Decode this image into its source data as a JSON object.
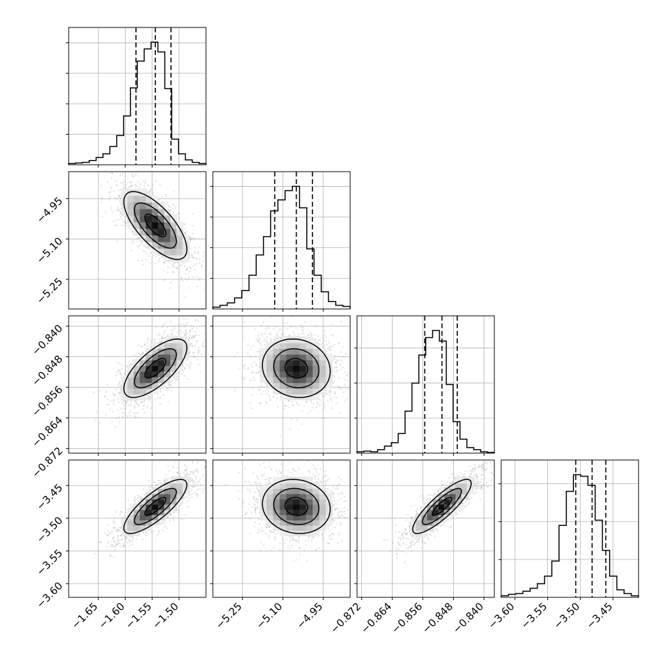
{
  "chart_data": {
    "type": "corner",
    "parameters": [
      {
        "key": "p0",
        "range": [
          -1.705,
          -1.45
        ],
        "ticks": [
          -1.65,
          -1.6,
          -1.55,
          -1.5
        ],
        "tick_labels": [
          "−1.65",
          "−1.60",
          "−1.55",
          "−1.50"
        ],
        "quantiles": [
          -1.58,
          -1.544,
          -1.515
        ]
      },
      {
        "key": "p1",
        "range": [
          -5.36,
          -4.85
        ],
        "ticks": [
          -5.25,
          -5.1,
          -4.95
        ],
        "tick_labels": [
          "−5.25",
          "−5.10",
          "−4.95"
        ],
        "quantiles": [
          -5.13,
          -5.05,
          -4.99
        ]
      },
      {
        "key": "p2",
        "range": [
          -0.8732,
          -0.8373
        ],
        "ticks": [
          -0.872,
          -0.864,
          -0.856,
          -0.848,
          -0.84
        ],
        "tick_labels": [
          "−0.872",
          "−0.864",
          "−0.856",
          "−0.848",
          "−0.840"
        ],
        "quantiles": [
          -0.8555,
          -0.851,
          -0.847
        ]
      },
      {
        "key": "p3",
        "range": [
          -3.621,
          -3.411
        ],
        "ticks": [
          -3.6,
          -3.55,
          -3.5,
          -3.45
        ],
        "tick_labels": [
          "−3.60",
          "−3.55",
          "−3.50",
          "−3.45"
        ],
        "quantiles": [
          -3.507,
          -3.482,
          -3.461
        ]
      }
    ],
    "histograms": [
      [
        2,
        3,
        4,
        7,
        12,
        18,
        30,
        48,
        80,
        126,
        170,
        190,
        201,
        185,
        125,
        42,
        18,
        8,
        4,
        2
      ],
      [
        3,
        6,
        10,
        18,
        30,
        55,
        88,
        118,
        160,
        178,
        193,
        200,
        165,
        98,
        55,
        28,
        12,
        6,
        4
      ],
      [
        2,
        3,
        2,
        5,
        10,
        15,
        28,
        60,
        100,
        140,
        165,
        175,
        160,
        98,
        45,
        20,
        8,
        5,
        2,
        1
      ],
      [
        2,
        4,
        5,
        8,
        12,
        18,
        28,
        48,
        95,
        140,
        162,
        160,
        148,
        102,
        62,
        28,
        10,
        5,
        2
      ]
    ],
    "correlations": {
      "1,0": -0.7,
      "2,0": 0.7,
      "2,1": -0.1,
      "3,0": 0.8,
      "3,1": -0.1,
      "3,2": 0.85
    },
    "grid": true,
    "contour_levels": 3,
    "colors": {
      "histogram": "#000000",
      "scatter": "#9a9a9a",
      "density": "#000000"
    }
  }
}
